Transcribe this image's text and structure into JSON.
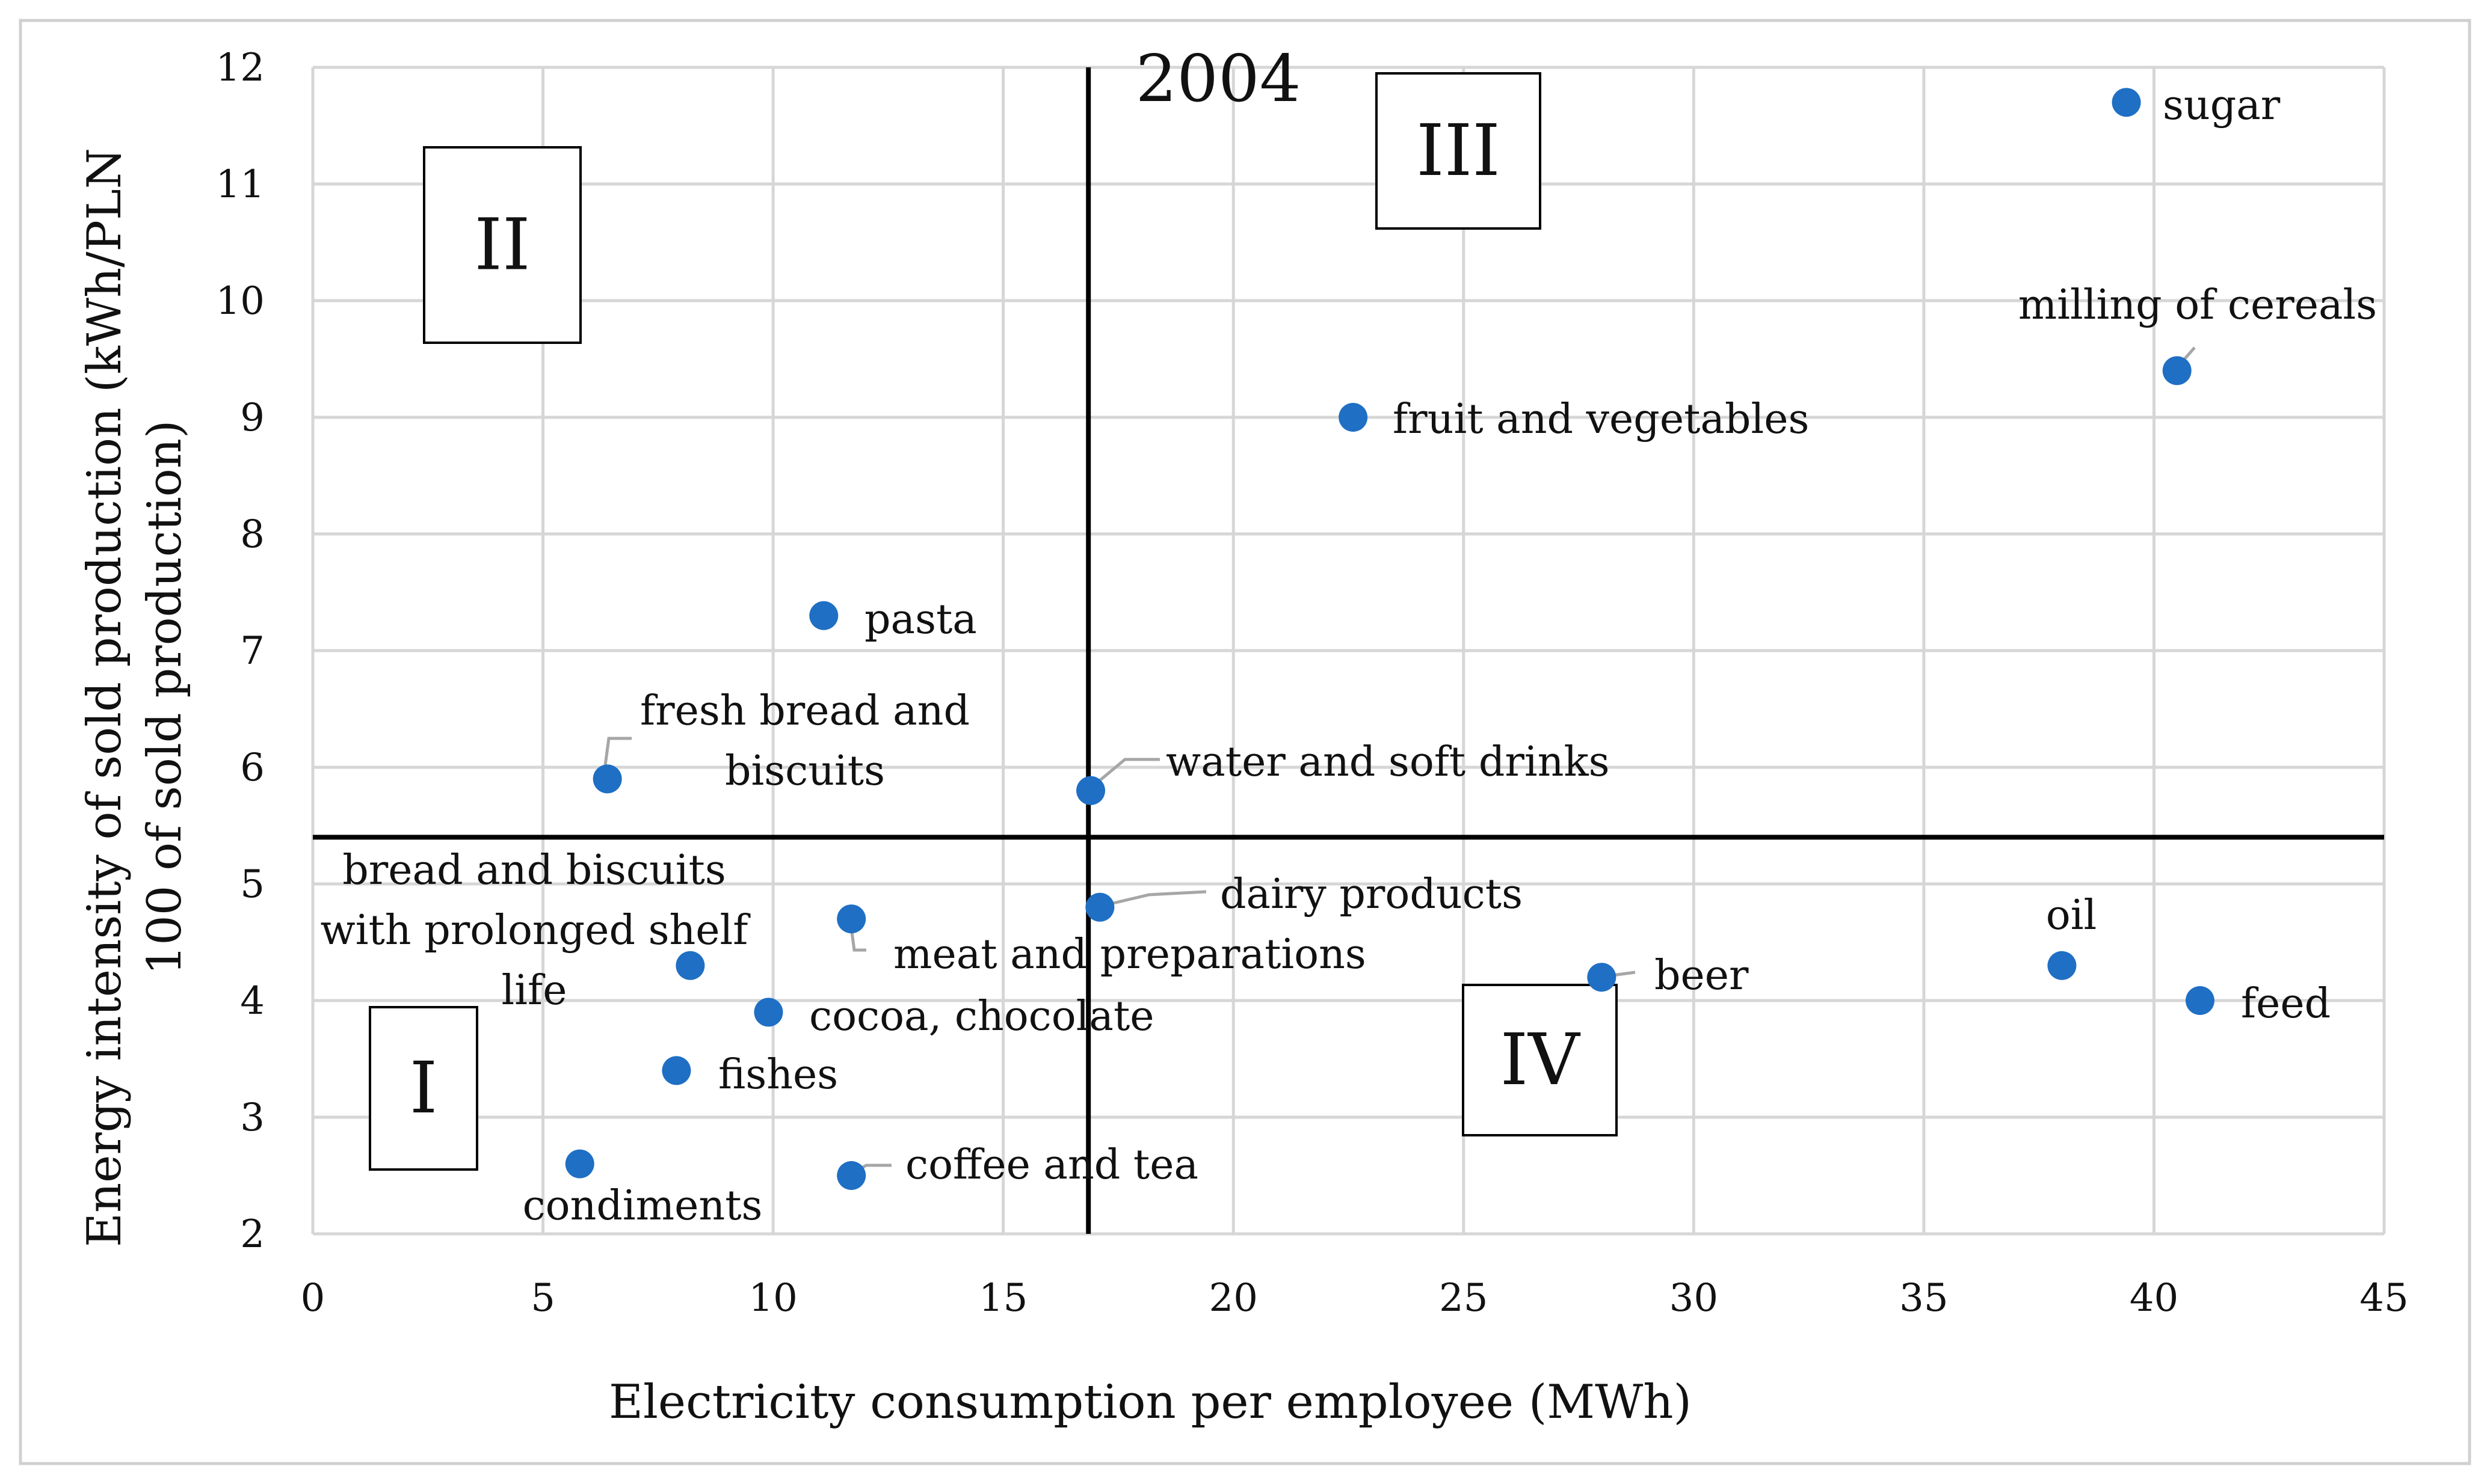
{
  "chart_data": {
    "type": "scatter",
    "title": "2004",
    "xlabel": "Electricity consumption per employee (MWh)",
    "ylabel_lines": [
      "Energy intensity of sold production (kWh/PLN",
      "100 of sold production)"
    ],
    "xlim": [
      0,
      45
    ],
    "ylim": [
      2,
      12
    ],
    "xticks": [
      "0",
      "5",
      "10",
      "15",
      "20",
      "25",
      "30",
      "35",
      "40",
      "45"
    ],
    "yticks": [
      "2",
      "3",
      "4",
      "5",
      "6",
      "7",
      "8",
      "9",
      "10",
      "11",
      "12"
    ],
    "grid": true,
    "point_color": "#1f6fc4",
    "divider_lines": {
      "x": 16.85,
      "y": 5.4
    },
    "quadrant_labels": [
      "I",
      "II",
      "III",
      "IV"
    ],
    "points": [
      {
        "x": 39.4,
        "y": 11.7,
        "label_lines": [
          "sugar"
        ]
      },
      {
        "x": 40.5,
        "y": 9.4,
        "label_lines": [
          "milling of cereals"
        ]
      },
      {
        "x": 22.6,
        "y": 9.0,
        "label_lines": [
          "fruit and vegetables"
        ]
      },
      {
        "x": 11.1,
        "y": 7.3,
        "label_lines": [
          "pasta"
        ]
      },
      {
        "x": 6.4,
        "y": 5.9,
        "label_lines": [
          "fresh bread and",
          "biscuits"
        ]
      },
      {
        "x": 16.9,
        "y": 5.8,
        "label_lines": [
          "water and soft drinks"
        ]
      },
      {
        "x": 17.1,
        "y": 4.8,
        "label_lines": [
          "dairy products"
        ]
      },
      {
        "x": 11.7,
        "y": 4.7,
        "label_lines": [
          "meat and preparations"
        ]
      },
      {
        "x": 8.2,
        "y": 4.3,
        "label_lines": [
          "bread and biscuits",
          "with prolonged shelf",
          "life"
        ]
      },
      {
        "x": 28.0,
        "y": 4.2,
        "label_lines": [
          "beer"
        ]
      },
      {
        "x": 38.0,
        "y": 4.3,
        "label_lines": [
          "oil"
        ]
      },
      {
        "x": 41.0,
        "y": 4.0,
        "label_lines": [
          "feed"
        ]
      },
      {
        "x": 9.9,
        "y": 3.9,
        "label_lines": [
          "cocoa, chocolate"
        ]
      },
      {
        "x": 7.9,
        "y": 3.4,
        "label_lines": [
          "fishes"
        ]
      },
      {
        "x": 5.8,
        "y": 2.6,
        "label_lines": [
          "condiments"
        ]
      },
      {
        "x": 11.7,
        "y": 2.5,
        "label_lines": [
          "coffee and tea"
        ]
      }
    ]
  }
}
